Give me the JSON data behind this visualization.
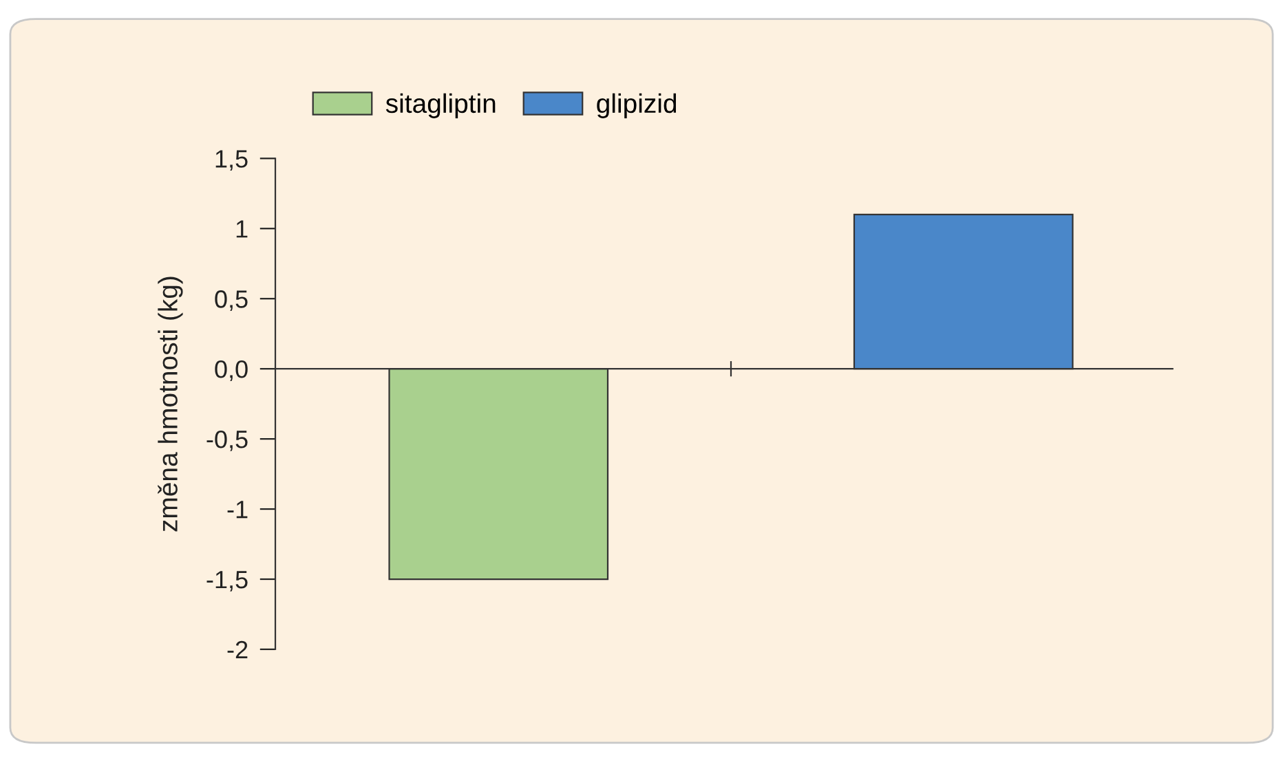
{
  "chart_data": {
    "type": "bar",
    "ylabel": "změna hmotnosti (kg)",
    "categories": [
      null,
      null
    ],
    "series": [
      {
        "name": "sitagliptin",
        "color": "#a9d08e",
        "values": [
          -1.5,
          null
        ]
      },
      {
        "name": "glipizid",
        "color": "#4a87c9",
        "values": [
          null,
          1.1
        ]
      }
    ],
    "ylim": [
      -2,
      1.5
    ],
    "yticks": [
      {
        "value": 1.5,
        "label": "1,5"
      },
      1,
      {
        "value": 0.5,
        "label": "0,5"
      },
      {
        "value": 0,
        "label": "0,0"
      },
      {
        "value": -0.5,
        "label": "-0,5"
      },
      -1,
      {
        "value": -1.5,
        "label": "-1,5"
      },
      -2
    ],
    "legend": "top left"
  }
}
